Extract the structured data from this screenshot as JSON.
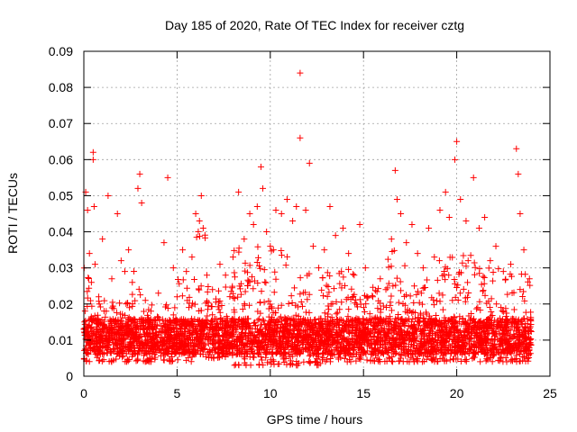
{
  "chart_data": {
    "type": "scatter",
    "title": "Day 185 of 2020, Rate Of TEC Index for receiver cztg",
    "xlabel": "GPS time / hours",
    "ylabel": "ROTI / TECUs",
    "xlim": [
      0,
      25
    ],
    "ylim": [
      0,
      0.09
    ],
    "x_ticks": [
      0,
      5,
      10,
      15,
      20,
      25
    ],
    "x_tick_labels": [
      "0",
      "5",
      "10",
      "15",
      "20",
      "25"
    ],
    "y_ticks": [
      0,
      0.01,
      0.02,
      0.03,
      0.04,
      0.05,
      0.06,
      0.07,
      0.08,
      0.09
    ],
    "y_tick_labels": [
      "0",
      "0.01",
      "0.02",
      "0.03",
      "0.04",
      "0.05",
      "0.06",
      "0.07",
      "0.08",
      "0.09"
    ],
    "grid": true,
    "marker": "+",
    "color": "#ff0000",
    "series": [
      {
        "name": "ROTI",
        "points": [
          [
            0.05,
            0.012
          ],
          [
            0.1,
            0.051
          ],
          [
            0.2,
            0.046
          ],
          [
            0.3,
            0.034
          ],
          [
            0.4,
            0.016
          ],
          [
            0.5,
            0.062
          ],
          [
            0.5,
            0.06
          ],
          [
            0.55,
            0.047
          ],
          [
            0.6,
            0.031
          ],
          [
            0.8,
            0.022
          ],
          [
            1.0,
            0.038
          ],
          [
            1.2,
            0.018
          ],
          [
            1.3,
            0.05
          ],
          [
            1.5,
            0.027
          ],
          [
            1.8,
            0.045
          ],
          [
            2.0,
            0.032
          ],
          [
            2.2,
            0.029
          ],
          [
            2.4,
            0.035
          ],
          [
            2.6,
            0.026
          ],
          [
            2.9,
            0.052
          ],
          [
            3.0,
            0.056
          ],
          [
            3.1,
            0.048
          ],
          [
            3.3,
            0.021
          ],
          [
            3.6,
            0.018
          ],
          [
            4.0,
            0.023
          ],
          [
            4.3,
            0.037
          ],
          [
            4.5,
            0.055
          ],
          [
            4.8,
            0.03
          ],
          [
            5.0,
            0.022
          ],
          [
            5.3,
            0.035
          ],
          [
            5.5,
            0.029
          ],
          [
            5.8,
            0.033
          ],
          [
            6.0,
            0.045
          ],
          [
            6.2,
            0.043
          ],
          [
            6.3,
            0.05
          ],
          [
            6.4,
            0.041
          ],
          [
            6.6,
            0.028
          ],
          [
            6.9,
            0.024
          ],
          [
            7.3,
            0.031
          ],
          [
            7.6,
            0.028
          ],
          [
            8.0,
            0.033
          ],
          [
            8.3,
            0.051
          ],
          [
            8.6,
            0.038
          ],
          [
            8.9,
            0.045
          ],
          [
            9.1,
            0.042
          ],
          [
            9.3,
            0.047
          ],
          [
            9.5,
            0.058
          ],
          [
            9.6,
            0.052
          ],
          [
            9.8,
            0.04
          ],
          [
            10.0,
            0.036
          ],
          [
            10.3,
            0.046
          ],
          [
            10.6,
            0.045
          ],
          [
            10.9,
            0.049
          ],
          [
            11.2,
            0.043
          ],
          [
            11.4,
            0.047
          ],
          [
            11.6,
            0.084
          ],
          [
            11.6,
            0.066
          ],
          [
            11.9,
            0.046
          ],
          [
            12.1,
            0.059
          ],
          [
            12.3,
            0.036
          ],
          [
            12.6,
            0.03
          ],
          [
            12.9,
            0.035
          ],
          [
            13.2,
            0.047
          ],
          [
            13.5,
            0.039
          ],
          [
            13.9,
            0.041
          ],
          [
            14.2,
            0.034
          ],
          [
            14.5,
            0.028
          ],
          [
            14.8,
            0.042
          ],
          [
            15.1,
            0.03
          ],
          [
            15.5,
            0.022
          ],
          [
            15.9,
            0.027
          ],
          [
            16.2,
            0.024
          ],
          [
            16.5,
            0.038
          ],
          [
            16.7,
            0.057
          ],
          [
            16.8,
            0.049
          ],
          [
            17.0,
            0.045
          ],
          [
            17.3,
            0.037
          ],
          [
            17.6,
            0.042
          ],
          [
            17.9,
            0.034
          ],
          [
            18.2,
            0.03
          ],
          [
            18.5,
            0.041
          ],
          [
            18.8,
            0.033
          ],
          [
            19.1,
            0.046
          ],
          [
            19.4,
            0.051
          ],
          [
            19.6,
            0.044
          ],
          [
            19.9,
            0.06
          ],
          [
            20.0,
            0.065
          ],
          [
            20.2,
            0.049
          ],
          [
            20.5,
            0.043
          ],
          [
            20.9,
            0.055
          ],
          [
            21.2,
            0.041
          ],
          [
            21.5,
            0.044
          ],
          [
            21.8,
            0.032
          ],
          [
            22.1,
            0.036
          ],
          [
            22.5,
            0.029
          ],
          [
            22.9,
            0.031
          ],
          [
            23.2,
            0.063
          ],
          [
            23.3,
            0.056
          ],
          [
            23.4,
            0.045
          ],
          [
            23.6,
            0.035
          ],
          [
            23.9,
            0.027
          ]
        ]
      }
    ],
    "dense_band": {
      "description": "dense cluster of low ROTI values filling roughly 0.003 to 0.02 across the full day, with several intervals reaching 0.02 to 0.04",
      "bursts": [
        {
          "start": 0.0,
          "end": 0.8,
          "low": 0.004,
          "high": 0.03
        },
        {
          "start": 0.8,
          "end": 2.5,
          "low": 0.004,
          "high": 0.022
        },
        {
          "start": 2.5,
          "end": 3.2,
          "low": 0.004,
          "high": 0.03
        },
        {
          "start": 3.2,
          "end": 5.0,
          "low": 0.004,
          "high": 0.02
        },
        {
          "start": 5.0,
          "end": 6.0,
          "low": 0.004,
          "high": 0.028
        },
        {
          "start": 6.0,
          "end": 6.6,
          "low": 0.005,
          "high": 0.042
        },
        {
          "start": 6.6,
          "end": 8.0,
          "low": 0.005,
          "high": 0.025
        },
        {
          "start": 8.0,
          "end": 11.0,
          "low": 0.003,
          "high": 0.036
        },
        {
          "start": 11.0,
          "end": 12.3,
          "low": 0.003,
          "high": 0.03
        },
        {
          "start": 12.3,
          "end": 12.7,
          "low": 0.003,
          "high": 0.015
        },
        {
          "start": 12.7,
          "end": 14.5,
          "low": 0.004,
          "high": 0.03
        },
        {
          "start": 14.5,
          "end": 16.3,
          "low": 0.004,
          "high": 0.025
        },
        {
          "start": 16.3,
          "end": 17.3,
          "low": 0.004,
          "high": 0.035
        },
        {
          "start": 17.3,
          "end": 19.0,
          "low": 0.004,
          "high": 0.027
        },
        {
          "start": 19.0,
          "end": 21.0,
          "low": 0.004,
          "high": 0.035
        },
        {
          "start": 21.0,
          "end": 22.5,
          "low": 0.004,
          "high": 0.03
        },
        {
          "start": 22.5,
          "end": 24.0,
          "low": 0.004,
          "high": 0.03
        }
      ]
    }
  }
}
